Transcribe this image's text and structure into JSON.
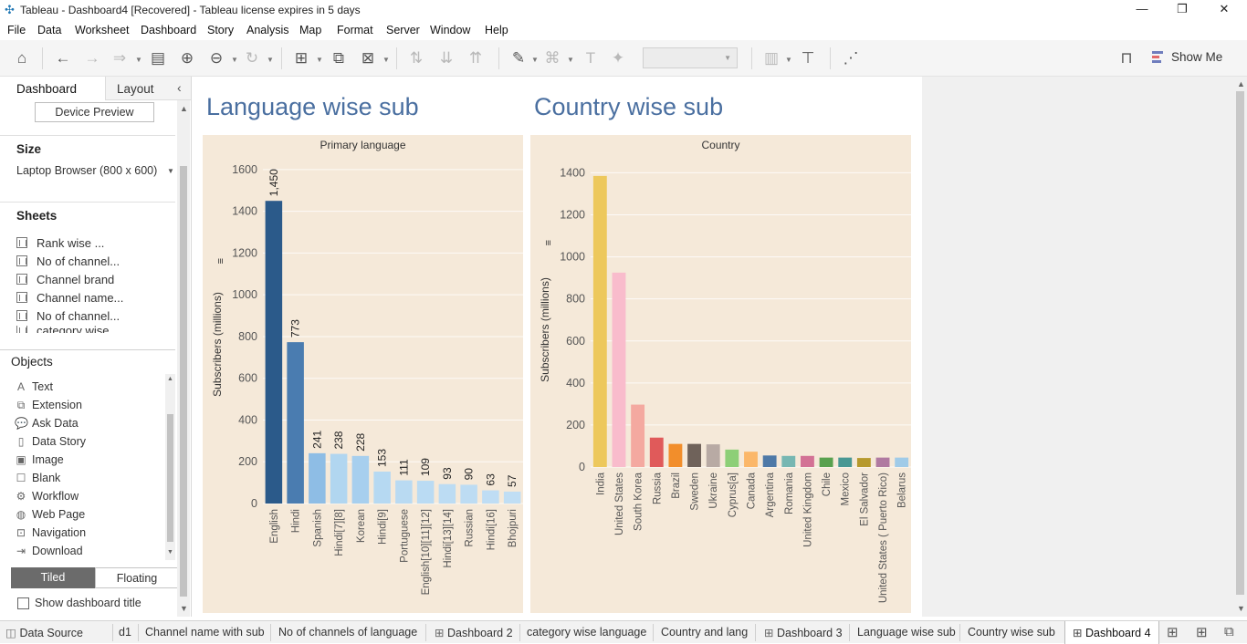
{
  "window": {
    "title": "Tableau - Dashboard4 [Recovered] - Tableau license expires in 5 days",
    "minimize": "—",
    "restore": "❐",
    "close": "✕"
  },
  "menu": [
    "File",
    "Data",
    "Worksheet",
    "Dashboard",
    "Story",
    "Analysis",
    "Map",
    "Format",
    "Server",
    "Window",
    "Help"
  ],
  "toolbar": {
    "show_me_label": "Show Me"
  },
  "left_panel": {
    "tabs": {
      "dashboard": "Dashboard",
      "layout": "Layout"
    },
    "device_preview": "Device Preview",
    "size_heading": "Size",
    "size_value": "Laptop Browser (800 x 600)",
    "sheets_heading": "Sheets",
    "sheets": [
      "Rank wise ...",
      "No of channel...",
      "Channel brand",
      "Channel name...",
      "No of channel...",
      "category wise ..."
    ],
    "objects_heading": "Objects",
    "objects": [
      {
        "label": "Text",
        "icon": "text-icon",
        "glyph": "A"
      },
      {
        "label": "Extension",
        "icon": "extension-icon",
        "glyph": "⧉"
      },
      {
        "label": "Ask Data",
        "icon": "ask-data-icon",
        "glyph": "💬"
      },
      {
        "label": "Data Story",
        "icon": "data-story-icon",
        "glyph": "▯"
      },
      {
        "label": "Image",
        "icon": "image-icon",
        "glyph": "▣"
      },
      {
        "label": "Blank",
        "icon": "blank-icon",
        "glyph": "☐"
      },
      {
        "label": "Workflow",
        "icon": "workflow-icon",
        "glyph": "⚙"
      },
      {
        "label": "Web Page",
        "icon": "web-page-icon",
        "glyph": "◍"
      },
      {
        "label": "Navigation",
        "icon": "navigation-icon",
        "glyph": "⊡"
      },
      {
        "label": "Download",
        "icon": "download-icon",
        "glyph": "⇥"
      }
    ],
    "tiled": "Tiled",
    "floating": "Floating",
    "show_title": "Show dashboard title"
  },
  "dashboard": {
    "left_title": "Language wise sub",
    "right_title": "Country wise sub"
  },
  "chart_data": [
    {
      "type": "bar",
      "title": "Primary language",
      "ylabel": "Subscribers (millions)",
      "ylim": [
        0,
        1700
      ],
      "yticks": [
        0,
        200,
        400,
        600,
        800,
        1000,
        1200,
        1400,
        1600
      ],
      "categories": [
        "English",
        "Hindi",
        "Spanish",
        "Hindi[7][8]",
        "Korean",
        "Hindi[9]",
        "Portuguese",
        "English[10][11][12]",
        "Hindi[13][14]",
        "Russian",
        "Hindi[16]",
        "Bhojpuri"
      ],
      "values": [
        1450,
        773,
        241,
        238,
        228,
        153,
        111,
        109,
        93,
        90,
        63,
        57
      ],
      "labels": [
        "1,450",
        "773",
        "241",
        "238",
        "228",
        "153",
        "111",
        "109",
        "93",
        "90",
        "63",
        "57"
      ],
      "colors": [
        "#2b5a8a",
        "#4a7cb0",
        "#8ebde5",
        "#b1d6f0",
        "#a7cfee",
        "#b6d9f2",
        "#b9daf2",
        "#badbf3",
        "#bcdcf3",
        "#bddcf3",
        "#bfddf4",
        "#c0def4"
      ],
      "grid": true
    },
    {
      "type": "bar",
      "title": "Country",
      "ylabel": "Subscribers (millions)",
      "ylim": [
        0,
        1480
      ],
      "yticks": [
        0,
        200,
        400,
        600,
        800,
        1000,
        1200,
        1400
      ],
      "categories": [
        "India",
        "United States",
        "South Korea",
        "Russia",
        "Brazil",
        "Sweden",
        "Ukraine",
        "Cyprus[a]",
        "Canada",
        "Argentina",
        "Romania",
        "United Kingdom",
        "Chile",
        "Mexico",
        "El Salvador",
        "United States ( Puerto Rico)",
        "Belarus"
      ],
      "values": [
        1385,
        925,
        297,
        140,
        110,
        110,
        108,
        83,
        73,
        55,
        53,
        53,
        45,
        45,
        43,
        45,
        45
      ],
      "colors": [
        "#edc85c",
        "#f9bccc",
        "#f4a9a0",
        "#e05a5a",
        "#f28e2b",
        "#6f625a",
        "#b8aaa4",
        "#8dcf77",
        "#fbb769",
        "#4e79a7",
        "#77b7b2",
        "#d37295",
        "#59a14f",
        "#499894",
        "#b6992d",
        "#b07aa1",
        "#a0cbe8"
      ],
      "grid": true
    }
  ],
  "bottom_tabs": [
    {
      "label": "Data Source",
      "icon": "data-source-icon"
    },
    {
      "label": "d1",
      "icon": ""
    },
    {
      "label": "Channel name with sub",
      "icon": ""
    },
    {
      "label": "No of channels of language",
      "icon": ""
    },
    {
      "label": "Dashboard 2",
      "icon": "dashboard-icon"
    },
    {
      "label": "category wise language",
      "icon": ""
    },
    {
      "label": "Country and lang",
      "icon": ""
    },
    {
      "label": "Dashboard 3",
      "icon": "dashboard-icon"
    },
    {
      "label": "Language wise sub",
      "icon": ""
    },
    {
      "label": "Country wise sub",
      "icon": ""
    },
    {
      "label": "Dashboard 4",
      "icon": "dashboard-icon"
    }
  ]
}
